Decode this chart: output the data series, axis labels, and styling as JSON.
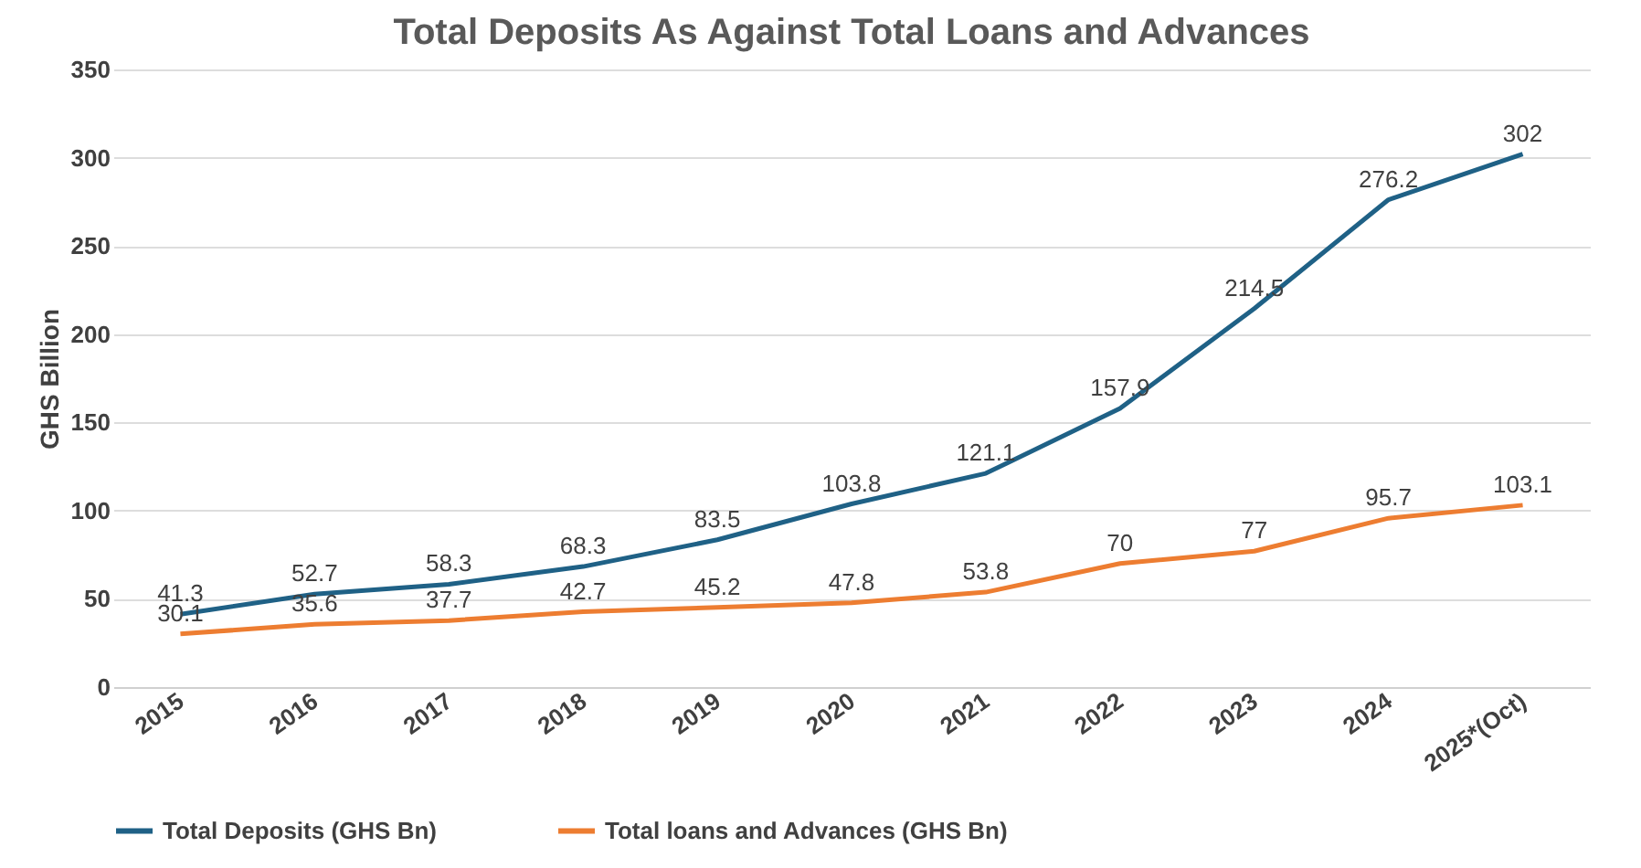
{
  "chart_data": {
    "type": "line",
    "title": "Total Deposits As Against Total Loans and Advances",
    "ylabel": "GHS Billion",
    "categories": [
      "2015",
      "2016",
      "2017",
      "2018",
      "2019",
      "2020",
      "2021",
      "2022",
      "2023",
      "2024",
      "2025*(Oct)"
    ],
    "series": [
      {
        "name": "Total Deposits (GHS Bn)",
        "color": "#1f6186",
        "values": [
          41.3,
          52.7,
          58.3,
          68.3,
          83.5,
          103.8,
          121.1,
          157.9,
          214.5,
          276.2,
          302
        ]
      },
      {
        "name": "Total loans and Advances  (GHS Bn)",
        "color": "#ed7d31",
        "values": [
          30.1,
          35.6,
          37.7,
          42.7,
          45.2,
          47.8,
          53.8,
          70,
          77,
          95.7,
          103.1
        ]
      }
    ],
    "ylim": [
      0,
      350
    ],
    "yticks": [
      0,
      50,
      100,
      150,
      200,
      250,
      300,
      350
    ],
    "grid": "y",
    "legend": "bottom",
    "data_labels": true,
    "marker": "none",
    "line_style": "solid"
  }
}
